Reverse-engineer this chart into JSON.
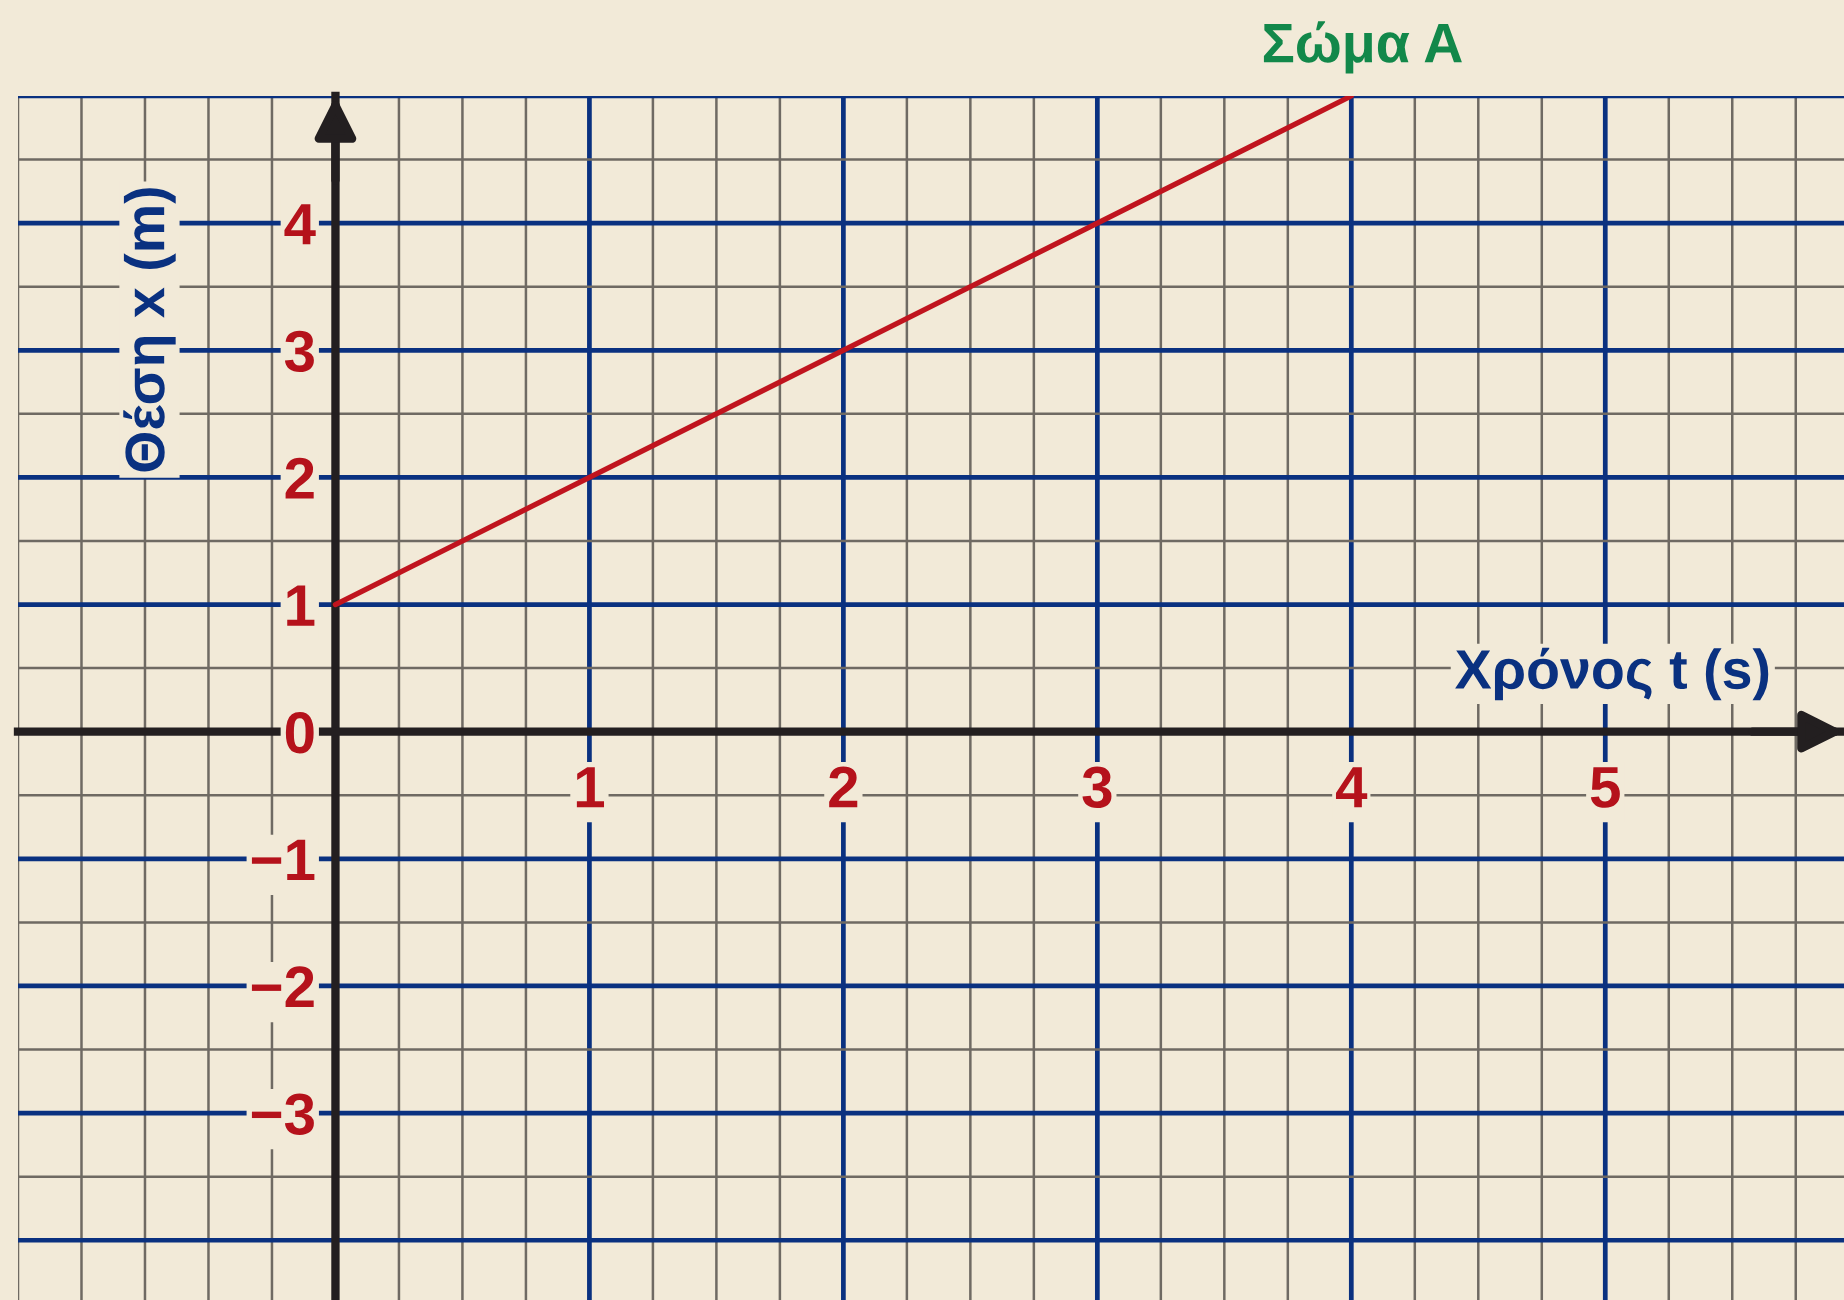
{
  "chart_data": {
    "type": "line",
    "x": [
      0,
      4
    ],
    "series": [
      {
        "name": "Σώμα Α",
        "color": "#c0141e",
        "values": [
          1,
          5
        ]
      }
    ],
    "xlabel": "Χρόνος t (s)",
    "ylabel": "Θέση x (m)",
    "xlim": [
      -1.25,
      5.94
    ],
    "ylim": [
      -4.47,
      5
    ],
    "xticks": [
      1,
      2,
      3,
      4,
      5
    ],
    "yticks": [
      {
        "value": -4,
        "label": null
      },
      {
        "value": -3,
        "label": "−3"
      },
      {
        "value": -2,
        "label": "−2"
      },
      {
        "value": -1,
        "label": "−1"
      },
      0,
      1,
      2,
      3,
      4,
      {
        "value": 5,
        "label": null
      }
    ],
    "grid": true
  }
}
